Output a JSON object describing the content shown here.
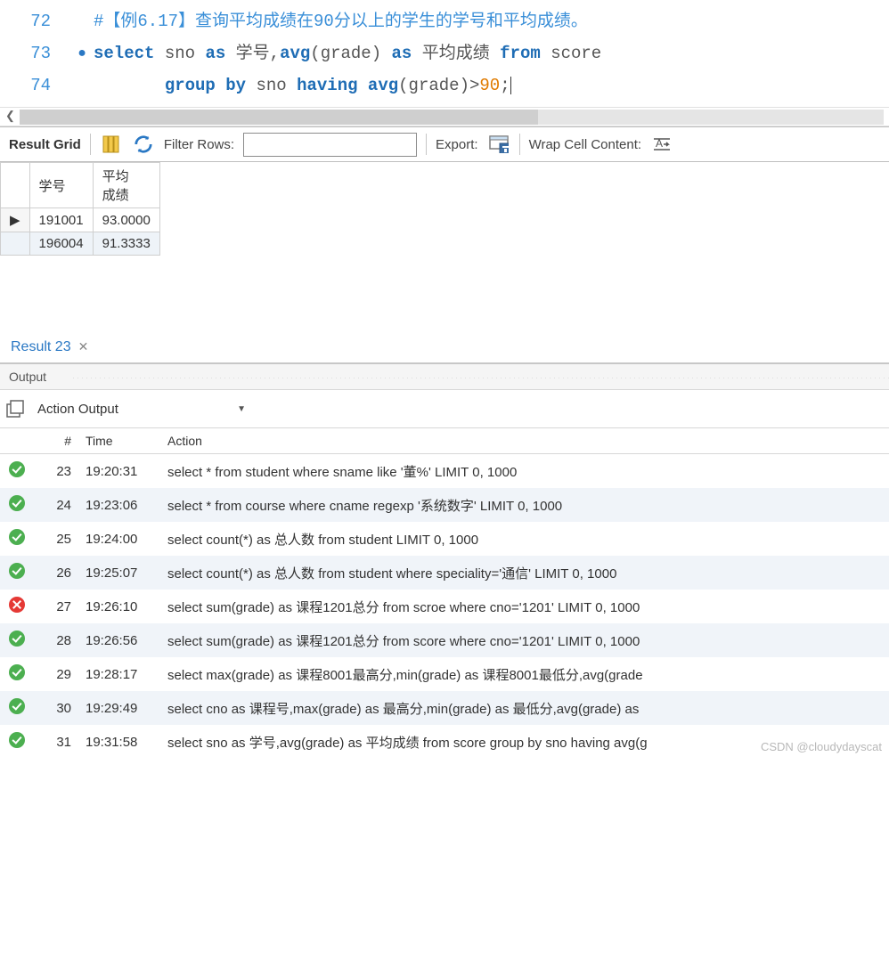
{
  "editor": {
    "lines": [
      {
        "num": "72",
        "breakpoint": false,
        "indent": "",
        "tokens": [
          {
            "t": "comment",
            "v": "#【例6.17】查询平均成绩在90分以上的学生的学号和平均成绩。"
          }
        ]
      },
      {
        "num": "73",
        "breakpoint": true,
        "indent": "",
        "tokens": [
          {
            "t": "keyword",
            "v": "select"
          },
          {
            "t": "space",
            "v": " "
          },
          {
            "t": "ident",
            "v": "sno"
          },
          {
            "t": "space",
            "v": " "
          },
          {
            "t": "keyword",
            "v": "as"
          },
          {
            "t": "space",
            "v": " "
          },
          {
            "t": "ident",
            "v": "学号,"
          },
          {
            "t": "func",
            "v": "avg"
          },
          {
            "t": "punct",
            "v": "("
          },
          {
            "t": "ident",
            "v": "grade"
          },
          {
            "t": "punct",
            "v": ")"
          },
          {
            "t": "space",
            "v": " "
          },
          {
            "t": "keyword",
            "v": "as"
          },
          {
            "t": "space",
            "v": " "
          },
          {
            "t": "ident",
            "v": "平均成绩"
          },
          {
            "t": "space",
            "v": " "
          },
          {
            "t": "keyword",
            "v": "from"
          },
          {
            "t": "space",
            "v": " "
          },
          {
            "t": "ident",
            "v": "score"
          }
        ]
      },
      {
        "num": "74",
        "breakpoint": false,
        "indent": "       ",
        "tokens": [
          {
            "t": "keyword",
            "v": "group"
          },
          {
            "t": "space",
            "v": " "
          },
          {
            "t": "keyword",
            "v": "by"
          },
          {
            "t": "space",
            "v": " "
          },
          {
            "t": "ident",
            "v": "sno"
          },
          {
            "t": "space",
            "v": " "
          },
          {
            "t": "keyword",
            "v": "having"
          },
          {
            "t": "space",
            "v": " "
          },
          {
            "t": "func",
            "v": "avg"
          },
          {
            "t": "punct",
            "v": "("
          },
          {
            "t": "ident",
            "v": "grade"
          },
          {
            "t": "punct",
            "v": ")>"
          },
          {
            "t": "num",
            "v": "90"
          },
          {
            "t": "punct",
            "v": ";"
          }
        ],
        "cursor": true
      }
    ],
    "scroll_thumb_width_pct": 60
  },
  "toolbar": {
    "result_grid_label": "Result Grid",
    "filter_label": "Filter Rows:",
    "export_label": "Export:",
    "wrap_label": "Wrap Cell Content:"
  },
  "result": {
    "columns": [
      "学号",
      "平均成绩"
    ],
    "rows": [
      {
        "indicator": "▶",
        "cells": [
          "191001",
          "93.0000"
        ]
      },
      {
        "indicator": "",
        "cells": [
          "196004",
          "91.3333"
        ]
      }
    ],
    "tab_label": "Result 23"
  },
  "output": {
    "header": "Output",
    "select": "Action Output",
    "columns": {
      "num": "#",
      "time": "Time",
      "action": "Action"
    },
    "rows": [
      {
        "status": "ok",
        "num": "23",
        "time": "19:20:31",
        "action": "select * from student where sname like '董%' LIMIT 0, 1000"
      },
      {
        "status": "ok",
        "num": "24",
        "time": "19:23:06",
        "action": "select * from course where cname regexp '系统数字' LIMIT 0, 1000"
      },
      {
        "status": "ok",
        "num": "25",
        "time": "19:24:00",
        "action": "select count(*) as 总人数 from student LIMIT 0, 1000"
      },
      {
        "status": "ok",
        "num": "26",
        "time": "19:25:07",
        "action": "select count(*) as 总人数 from student  where speciality='通信' LIMIT 0, 1000"
      },
      {
        "status": "err",
        "num": "27",
        "time": "19:26:10",
        "action": "select sum(grade) as 课程1201总分 from scroe where cno='1201' LIMIT 0, 1000"
      },
      {
        "status": "ok",
        "num": "28",
        "time": "19:26:56",
        "action": "select sum(grade) as 课程1201总分 from score where cno='1201' LIMIT 0, 1000"
      },
      {
        "status": "ok",
        "num": "29",
        "time": "19:28:17",
        "action": "select max(grade) as 课程8001最高分,min(grade) as 课程8001最低分,avg(grade"
      },
      {
        "status": "ok",
        "num": "30",
        "time": "19:29:49",
        "action": "select cno as 课程号,max(grade) as 最高分,min(grade) as 最低分,avg(grade) as "
      },
      {
        "status": "ok",
        "num": "31",
        "time": "19:31:58",
        "action": "select sno as 学号,avg(grade) as 平均成绩 from score group by sno having avg(g"
      }
    ]
  },
  "watermark": "CSDN @cloudydayscat"
}
